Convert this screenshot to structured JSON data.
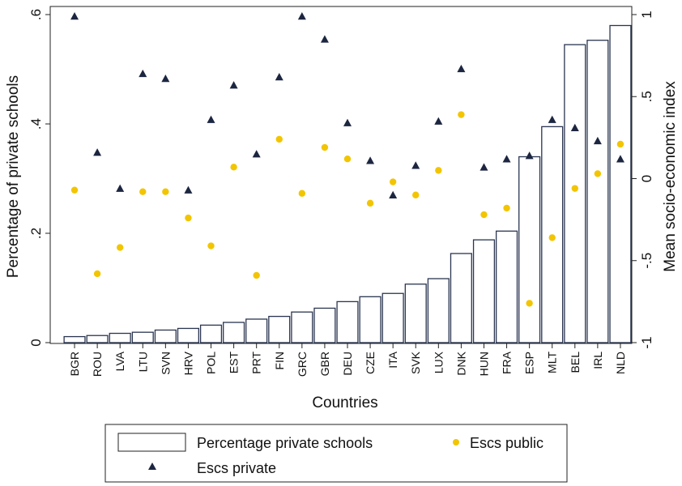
{
  "chart_data": {
    "type": "bar+scatter",
    "xlabel": "Countries",
    "ylabel_left": "Percentage of private schools",
    "ylabel_right": "Mean socio-economic index",
    "ylim_left": [
      0,
      0.6
    ],
    "ylim_right": [
      -1,
      1
    ],
    "yticks_left": [
      0,
      0.2,
      0.4,
      0.6
    ],
    "yticks_left_labels": [
      "0",
      ".2",
      ".4",
      ".6"
    ],
    "yticks_right": [
      -1,
      -0.5,
      0,
      0.5,
      1
    ],
    "yticks_right_labels": [
      "-1",
      "-.5",
      "0",
      ".5",
      "1"
    ],
    "categories": [
      "BGR",
      "ROU",
      "LVA",
      "LTU",
      "SVN",
      "HRV",
      "POL",
      "EST",
      "PRT",
      "FIN",
      "GRC",
      "GBR",
      "DEU",
      "CZE",
      "ITA",
      "SVK",
      "LUX",
      "DNK",
      "HUN",
      "FRA",
      "ESP",
      "MLT",
      "BEL",
      "IRL",
      "NLD"
    ],
    "series": [
      {
        "name": "Percentage private schools",
        "kind": "bar",
        "axis": "left",
        "values": [
          0.011,
          0.013,
          0.017,
          0.019,
          0.023,
          0.026,
          0.032,
          0.037,
          0.043,
          0.048,
          0.056,
          0.063,
          0.075,
          0.084,
          0.09,
          0.107,
          0.117,
          0.163,
          0.188,
          0.204,
          0.34,
          0.395,
          0.545,
          0.553,
          0.58
        ]
      },
      {
        "name": "Escs public",
        "kind": "scatter",
        "axis": "right",
        "marker": "circle",
        "color": "#f2c500",
        "values": [
          -0.07,
          -0.58,
          -0.42,
          -0.08,
          -0.08,
          -0.24,
          -0.41,
          0.07,
          -0.59,
          0.24,
          -0.09,
          0.19,
          0.12,
          -0.15,
          -0.02,
          -0.1,
          0.05,
          0.39,
          -0.22,
          -0.18,
          -0.76,
          -0.36,
          -0.06,
          0.03,
          0.21
        ]
      },
      {
        "name": "Escs private",
        "kind": "scatter",
        "axis": "right",
        "marker": "triangle",
        "color": "#1c2640",
        "values": [
          0.99,
          0.16,
          -0.06,
          0.64,
          0.61,
          -0.07,
          0.36,
          0.57,
          0.15,
          0.62,
          0.99,
          0.85,
          0.34,
          0.11,
          -0.1,
          0.08,
          0.35,
          0.67,
          0.07,
          0.12,
          0.14,
          0.36,
          0.31,
          0.23,
          0.12
        ]
      }
    ],
    "legend": {
      "placement": "bottom",
      "items": [
        "Percentage private schools",
        "Escs public",
        "Escs private"
      ]
    },
    "grid": false
  }
}
